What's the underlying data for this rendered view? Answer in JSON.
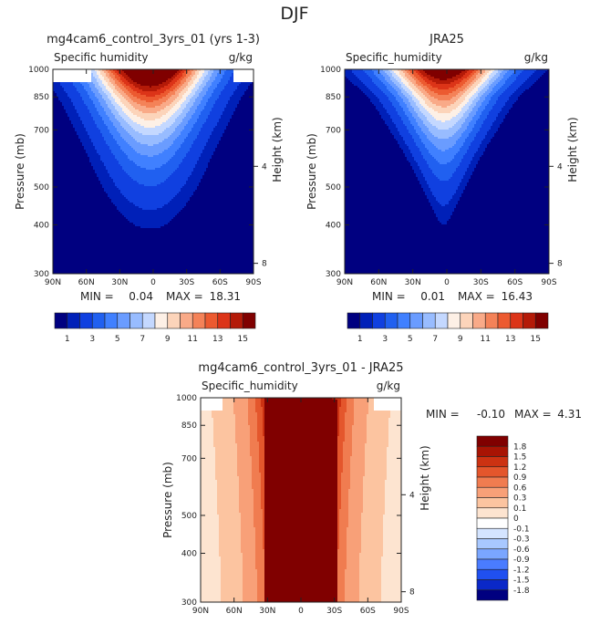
{
  "figure_title": "DJF",
  "colors": {
    "field_scale": [
      "#000080",
      "#0020b8",
      "#1040e0",
      "#2060f0",
      "#4080ff",
      "#6a9cff",
      "#98bcff",
      "#c4d8ff",
      "#fdf0e6",
      "#fcd4ba",
      "#f9aa88",
      "#f48258",
      "#ec5a30",
      "#dc3418",
      "#b41a08",
      "#800000"
    ],
    "diff_scale": [
      "#000080",
      "#0a28c8",
      "#2050f0",
      "#4a7cff",
      "#7aa6ff",
      "#a8c8ff",
      "#d4e4ff",
      "#ffffff",
      "#fde4d0",
      "#fcc4a0",
      "#f8a078",
      "#f07c50",
      "#e4562c",
      "#cc3212",
      "#a81404",
      "#800000"
    ]
  },
  "chart_data": [
    {
      "id": "model",
      "type": "contour",
      "title": "mg4cam6_control_3yrs_01 (yrs 1-3)",
      "variable": "Specific_humidity",
      "variable_display": "Specific humidity",
      "units": "g/kg",
      "ylabel": "Pressure (mb)",
      "y2label": "Height (km)",
      "xticks": [
        "90N",
        "60N",
        "30N",
        "0",
        "30S",
        "60S",
        "90S"
      ],
      "yticks": [
        300,
        400,
        500,
        700,
        850,
        1000
      ],
      "y2ticks": [
        8,
        4
      ],
      "stats": {
        "min_label": "MIN =",
        "min": "0.04",
        "max_label": "MAX =",
        "max": "18.31"
      },
      "colorbar_ticks": [
        "1",
        "3",
        "5",
        "7",
        "9",
        "11",
        "13",
        "15"
      ],
      "profile_plev": [
        1000,
        925,
        850,
        700,
        600,
        500,
        400,
        300
      ],
      "profile_halfwidth_deg": [
        64,
        62,
        58,
        52,
        48,
        45,
        40,
        32
      ],
      "peak_lat": 3,
      "levels": [
        0.5,
        1,
        2,
        3,
        4,
        5,
        6,
        7,
        8,
        9,
        10,
        11,
        12,
        13,
        14,
        15
      ],
      "masked": [
        {
          "lat_from": -90,
          "lat_to": -72,
          "p_from": 930
        },
        {
          "lat_from": 56,
          "lat_to": 90,
          "p_from": 930
        }
      ]
    },
    {
      "id": "obs",
      "type": "contour",
      "title": "JRA25",
      "variable": "Specific_humidity",
      "variable_display": "Specific_humidity",
      "units": "g/kg",
      "ylabel": "Pressure (mb)",
      "y2label": "Height (km)",
      "xticks": [
        "90N",
        "60N",
        "30N",
        "0",
        "30S",
        "60S",
        "90S"
      ],
      "yticks": [
        300,
        400,
        500,
        700,
        850,
        1000
      ],
      "y2ticks": [
        8,
        4
      ],
      "stats": {
        "min_label": "MIN =",
        "min": "0.01",
        "max_label": "MAX =",
        "max": "16.43"
      },
      "colorbar_ticks": [
        "1",
        "3",
        "5",
        "7",
        "9",
        "11",
        "13",
        "15"
      ],
      "profile_plev": [
        1000,
        925,
        850,
        700,
        600,
        500,
        400,
        300
      ],
      "profile_halfwidth_deg": [
        62,
        56,
        48,
        38,
        30,
        22,
        12,
        4
      ],
      "peak_lat": 3,
      "levels": [
        0.5,
        1,
        2,
        3,
        4,
        5,
        6,
        7,
        8,
        9,
        10,
        11,
        12,
        13,
        14,
        15
      ]
    },
    {
      "id": "diff",
      "type": "contour",
      "title": "mg4cam6_control_3yrs_01 - JRA25",
      "variable": "Specific_humidity",
      "variable_display": "Specific_humidity",
      "units": "g/kg",
      "ylabel": "Pressure (mb)",
      "y2label": "Height (km)",
      "xticks": [
        "90N",
        "60N",
        "30N",
        "0",
        "30S",
        "60S",
        "90S"
      ],
      "yticks": [
        300,
        400,
        500,
        700,
        850,
        1000
      ],
      "y2ticks": [
        8,
        4
      ],
      "stats": {
        "min_label": "MIN =",
        "min": "-0.10",
        "max_label": "MAX =",
        "max": "4.31"
      },
      "colorbar_ticks": [
        "1.8",
        "1.5",
        "1.2",
        "0.9",
        "0.6",
        "0.3",
        "0.1",
        "0",
        "-0.1",
        "-0.3",
        "-0.6",
        "-0.9",
        "-1.2",
        "-1.5",
        "-1.8"
      ],
      "levels": [
        -1.8,
        -1.5,
        -1.2,
        -0.9,
        -0.6,
        -0.3,
        -0.1,
        0,
        0.1,
        0.3,
        0.6,
        0.9,
        1.2,
        1.5,
        1.8
      ],
      "core_lat_range": [
        -33,
        33
      ],
      "core_value": 2.5,
      "masked": [
        {
          "lat_from": -90,
          "lat_to": -65,
          "p_from": 930
        },
        {
          "lat_from": 70,
          "lat_to": 90,
          "p_from": 930
        }
      ]
    }
  ]
}
